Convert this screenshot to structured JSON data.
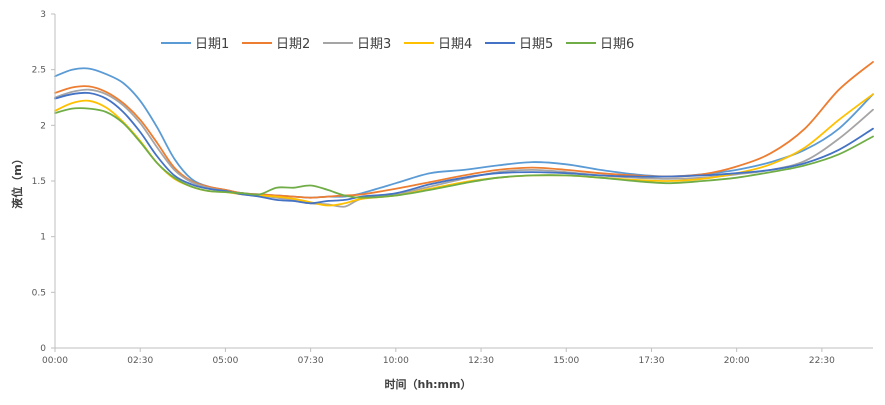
{
  "chart_data": {
    "type": "line",
    "title": "",
    "xlabel": "时间（hh:mm）",
    "ylabel": "液位（m）",
    "x_ticks": [
      "00:00",
      "02:30",
      "05:00",
      "07:30",
      "10:00",
      "12:30",
      "15:00",
      "17:30",
      "20:00",
      "22:30"
    ],
    "x_tick_hours": [
      0,
      2.5,
      5,
      7.5,
      10,
      12.5,
      15,
      17.5,
      20,
      22.5
    ],
    "xlim_hours": [
      0,
      24
    ],
    "y_ticks": [
      "0",
      "0.5",
      "1",
      "1.5",
      "2",
      "2.5",
      "3"
    ],
    "ylim": [
      0,
      3
    ],
    "grid": false,
    "legend_position": "top-left",
    "series": [
      {
        "name": "日期1",
        "color": "#5b9bd5",
        "x": [
          0,
          0.5,
          1,
          1.5,
          2,
          2.5,
          3,
          3.5,
          4,
          4.5,
          5,
          5.5,
          6,
          6.5,
          7,
          7.5,
          8,
          8.5,
          9,
          10,
          11,
          12,
          13,
          14,
          15,
          16,
          17,
          18,
          19,
          20,
          21,
          22,
          23,
          24
        ],
        "values": [
          2.44,
          2.5,
          2.51,
          2.46,
          2.38,
          2.22,
          1.98,
          1.7,
          1.52,
          1.45,
          1.42,
          1.39,
          1.38,
          1.37,
          1.36,
          1.35,
          1.36,
          1.36,
          1.39,
          1.48,
          1.57,
          1.6,
          1.64,
          1.67,
          1.65,
          1.6,
          1.56,
          1.54,
          1.56,
          1.6,
          1.67,
          1.78,
          1.97,
          2.28
        ]
      },
      {
        "name": "日期2",
        "color": "#ed7d31",
        "x": [
          0,
          0.5,
          1,
          1.5,
          2,
          2.5,
          3,
          3.5,
          4,
          4.5,
          5,
          5.5,
          6,
          6.5,
          7,
          7.5,
          8,
          8.5,
          9,
          10,
          11,
          12,
          13,
          14,
          15,
          16,
          17,
          18,
          19,
          20,
          21,
          22,
          23,
          24
        ],
        "values": [
          2.29,
          2.34,
          2.35,
          2.3,
          2.2,
          2.05,
          1.84,
          1.62,
          1.5,
          1.45,
          1.42,
          1.39,
          1.38,
          1.37,
          1.36,
          1.35,
          1.36,
          1.37,
          1.38,
          1.43,
          1.49,
          1.55,
          1.6,
          1.62,
          1.6,
          1.57,
          1.55,
          1.54,
          1.56,
          1.63,
          1.75,
          1.97,
          2.32,
          2.57
        ]
      },
      {
        "name": "日期3",
        "color": "#a5a5a5",
        "x": [
          0,
          0.5,
          1,
          1.5,
          2,
          2.5,
          3,
          3.5,
          4,
          4.5,
          5,
          5.5,
          6,
          6.5,
          7,
          7.5,
          8,
          8.5,
          9,
          10,
          11,
          12,
          13,
          14,
          15,
          16,
          17,
          18,
          19,
          20,
          21,
          22,
          23,
          24
        ],
        "values": [
          2.25,
          2.3,
          2.32,
          2.28,
          2.18,
          2.02,
          1.8,
          1.6,
          1.49,
          1.44,
          1.41,
          1.38,
          1.37,
          1.35,
          1.33,
          1.3,
          1.29,
          1.27,
          1.34,
          1.38,
          1.45,
          1.52,
          1.58,
          1.6,
          1.58,
          1.55,
          1.53,
          1.52,
          1.53,
          1.56,
          1.6,
          1.68,
          1.88,
          2.14
        ]
      },
      {
        "name": "日期4",
        "color": "#ffc000",
        "x": [
          0,
          0.5,
          1,
          1.5,
          2,
          2.5,
          3,
          3.5,
          4,
          4.5,
          5,
          5.5,
          6,
          6.5,
          7,
          7.5,
          8,
          8.5,
          9,
          10,
          11,
          12,
          13,
          14,
          15,
          16,
          17,
          18,
          19,
          20,
          21,
          22,
          23,
          24
        ],
        "values": [
          2.13,
          2.2,
          2.22,
          2.16,
          2.03,
          1.86,
          1.66,
          1.52,
          1.45,
          1.41,
          1.4,
          1.38,
          1.37,
          1.36,
          1.34,
          1.31,
          1.28,
          1.3,
          1.34,
          1.37,
          1.43,
          1.49,
          1.53,
          1.55,
          1.55,
          1.53,
          1.51,
          1.5,
          1.52,
          1.57,
          1.65,
          1.8,
          2.05,
          2.28
        ]
      },
      {
        "name": "日期5",
        "color": "#4472c4",
        "x": [
          0,
          0.5,
          1,
          1.5,
          2,
          2.5,
          3,
          3.5,
          4,
          4.5,
          5,
          5.5,
          6,
          6.5,
          7,
          7.5,
          8,
          8.5,
          9,
          10,
          11,
          12,
          13,
          14,
          15,
          16,
          17,
          18,
          19,
          20,
          21,
          22,
          23,
          24
        ],
        "values": [
          2.24,
          2.28,
          2.29,
          2.24,
          2.12,
          1.94,
          1.72,
          1.55,
          1.47,
          1.43,
          1.41,
          1.38,
          1.36,
          1.33,
          1.32,
          1.3,
          1.32,
          1.33,
          1.36,
          1.39,
          1.47,
          1.53,
          1.57,
          1.58,
          1.57,
          1.55,
          1.54,
          1.54,
          1.55,
          1.57,
          1.6,
          1.66,
          1.78,
          1.97
        ]
      },
      {
        "name": "日期6",
        "color": "#70ad47",
        "x": [
          0,
          0.5,
          1,
          1.5,
          2,
          2.5,
          3,
          3.5,
          4,
          4.5,
          5,
          5.5,
          6,
          6.5,
          7,
          7.5,
          8,
          8.5,
          9,
          10,
          11,
          12,
          13,
          14,
          15,
          16,
          17,
          18,
          19,
          20,
          21,
          22,
          23,
          24
        ],
        "values": [
          2.11,
          2.15,
          2.15,
          2.12,
          2.02,
          1.85,
          1.66,
          1.53,
          1.45,
          1.41,
          1.4,
          1.39,
          1.38,
          1.44,
          1.44,
          1.46,
          1.42,
          1.37,
          1.35,
          1.37,
          1.42,
          1.48,
          1.53,
          1.55,
          1.55,
          1.53,
          1.5,
          1.48,
          1.5,
          1.53,
          1.58,
          1.64,
          1.74,
          1.9
        ]
      }
    ]
  }
}
